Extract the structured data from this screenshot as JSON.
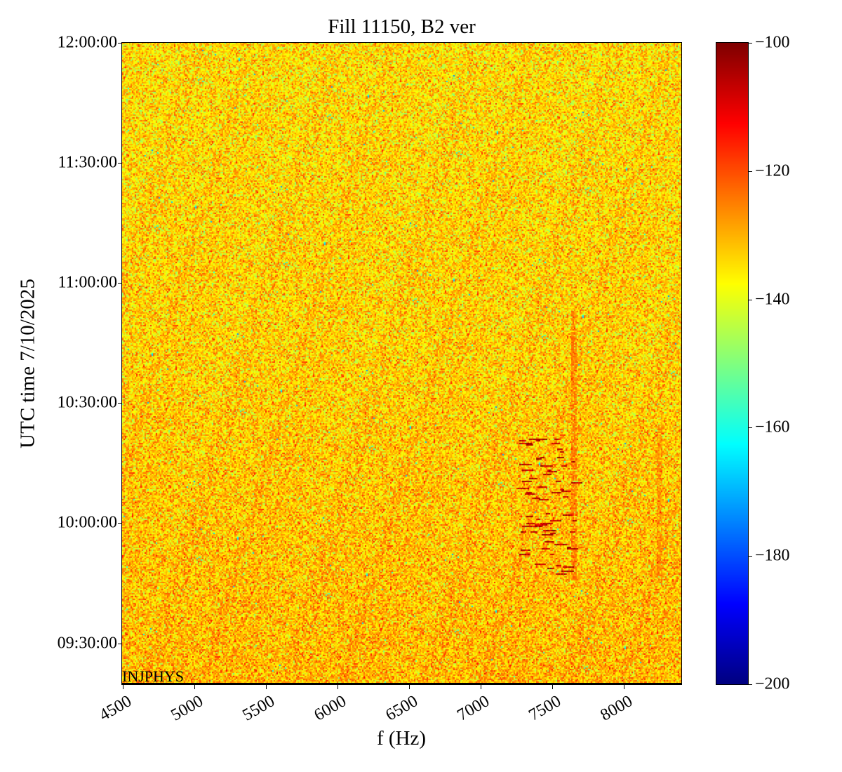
{
  "chart_data": {
    "type": "heatmap",
    "title": "Fill 11150, B2 ver",
    "xlabel": "f (Hz)",
    "ylabel": "UTC time 7/10/2025",
    "annotation": "INJPHYS",
    "xlim": [
      4495,
      8400
    ],
    "ylim": [
      "09:19:45",
      "12:00:00"
    ],
    "xticks": [
      4500,
      5000,
      5500,
      6000,
      6500,
      7000,
      7500,
      8000
    ],
    "xtick_labels": [
      "4500",
      "5000",
      "5500",
      "6000",
      "6500",
      "7000",
      "7500",
      "8000"
    ],
    "yticks": [
      "12:00:00",
      "11:30:00",
      "11:00:00",
      "10:30:00",
      "10:00:00",
      "09:30:00"
    ],
    "colormap": "jet",
    "colorbar": {
      "range": [
        -200,
        -100
      ],
      "ticks": [
        -100,
        -120,
        -140,
        -160,
        -180,
        -200
      ],
      "tick_labels": [
        "−100",
        "−120",
        "−140",
        "−160",
        "−180",
        "−200"
      ]
    },
    "background_level_db": -133,
    "features": [
      {
        "kind": "vertical-line",
        "f_hz": 7650,
        "from": "09:46:00",
        "to": "10:53:00",
        "level_db": -125
      },
      {
        "kind": "streaks",
        "f_range_hz": [
          7250,
          7650
        ],
        "from": "09:47:00",
        "to": "10:22:00",
        "level_db": -105
      },
      {
        "kind": "vertical-line",
        "f_hz": 8250,
        "from": "09:45:00",
        "to": "10:25:00",
        "level_db": -128
      }
    ]
  }
}
